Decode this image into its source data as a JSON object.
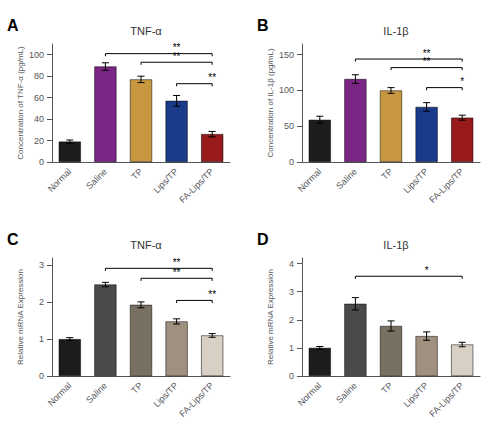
{
  "chart_data": [
    {
      "type": "bar",
      "panel_label": "A",
      "title": "TNF-α",
      "ylabel": "Concentration of TNF-α (pg/mL)",
      "categories": [
        "Normal",
        "Saline",
        "TP",
        "Lips/TP",
        "FA-Lips/TP"
      ],
      "values": [
        19,
        89,
        77,
        57,
        26
      ],
      "errors": [
        1.5,
        3.5,
        3.0,
        5.0,
        2.5
      ],
      "colors": [
        "#1c1c1c",
        "#7b2585",
        "#c89840",
        "#1a3a8a",
        "#991a1a"
      ],
      "ylim": [
        0,
        110
      ],
      "yticks": [
        0,
        20,
        40,
        60,
        80,
        100
      ],
      "grid": false,
      "significance": [
        {
          "from": "Saline",
          "to": "FA-Lips/TP",
          "y": 101,
          "label": "**"
        },
        {
          "from": "TP",
          "to": "FA-Lips/TP",
          "y": 93,
          "label": "**"
        },
        {
          "from": "Lips/TP",
          "to": "FA-Lips/TP",
          "y": 73,
          "label": "**"
        }
      ]
    },
    {
      "type": "bar",
      "panel_label": "B",
      "title": "IL-1β",
      "ylabel": "Concentration of IL-1β (pg/mL)",
      "categories": [
        "Normal",
        "Saline",
        "TP",
        "Lips/TP",
        "FA-Lips/TP"
      ],
      "values": [
        59,
        116,
        100,
        77,
        62
      ],
      "errors": [
        5.0,
        6.0,
        4.0,
        6.0,
        3.5
      ],
      "colors": [
        "#1c1c1c",
        "#7b2585",
        "#c89840",
        "#1a3a8a",
        "#991a1a"
      ],
      "ylim": [
        0,
        165
      ],
      "yticks": [
        0,
        50,
        100,
        150
      ],
      "grid": false,
      "significance": [
        {
          "from": "Saline",
          "to": "FA-Lips/TP",
          "y": 144,
          "label": "**"
        },
        {
          "from": "TP",
          "to": "FA-Lips/TP",
          "y": 132,
          "label": "**"
        },
        {
          "from": "Lips/TP",
          "to": "FA-Lips/TP",
          "y": 104,
          "label": "*"
        }
      ]
    },
    {
      "type": "bar",
      "panel_label": "C",
      "title": "TNF-α",
      "ylabel": "Relative mRNA Expression",
      "categories": [
        "Normal",
        "Saline",
        "TP",
        "Lips/TP",
        "FA-Lips/TP"
      ],
      "values": [
        1.0,
        2.48,
        1.93,
        1.48,
        1.1
      ],
      "errors": [
        0.04,
        0.06,
        0.08,
        0.07,
        0.05
      ],
      "colors": [
        "#1c1c1c",
        "#4a4a4a",
        "#787060",
        "#a09080",
        "#d8d0c4"
      ],
      "ylim": [
        0,
        3.2
      ],
      "yticks": [
        0,
        1,
        2,
        3
      ],
      "grid": false,
      "significance": [
        {
          "from": "Saline",
          "to": "FA-Lips/TP",
          "y": 2.92,
          "label": "**"
        },
        {
          "from": "TP",
          "to": "FA-Lips/TP",
          "y": 2.65,
          "label": "**"
        },
        {
          "from": "Lips/TP",
          "to": "FA-Lips/TP",
          "y": 2.05,
          "label": "**"
        }
      ]
    },
    {
      "type": "bar",
      "panel_label": "D",
      "title": "IL-1β",
      "ylabel": "Relative mRNA Expression",
      "categories": [
        "Normal",
        "Saline",
        "TP",
        "Lips/TP",
        "FA-Lips/TP"
      ],
      "values": [
        1.0,
        2.57,
        1.78,
        1.42,
        1.12
      ],
      "errors": [
        0.05,
        0.22,
        0.18,
        0.15,
        0.08
      ],
      "colors": [
        "#1c1c1c",
        "#4a4a4a",
        "#787060",
        "#a09080",
        "#d8d0c4"
      ],
      "ylim": [
        0,
        4.2
      ],
      "yticks": [
        0,
        1,
        2,
        3,
        4
      ],
      "grid": false,
      "significance": [
        {
          "from": "Saline",
          "to": "FA-Lips/TP",
          "y": 3.55,
          "label": "*"
        }
      ]
    }
  ]
}
